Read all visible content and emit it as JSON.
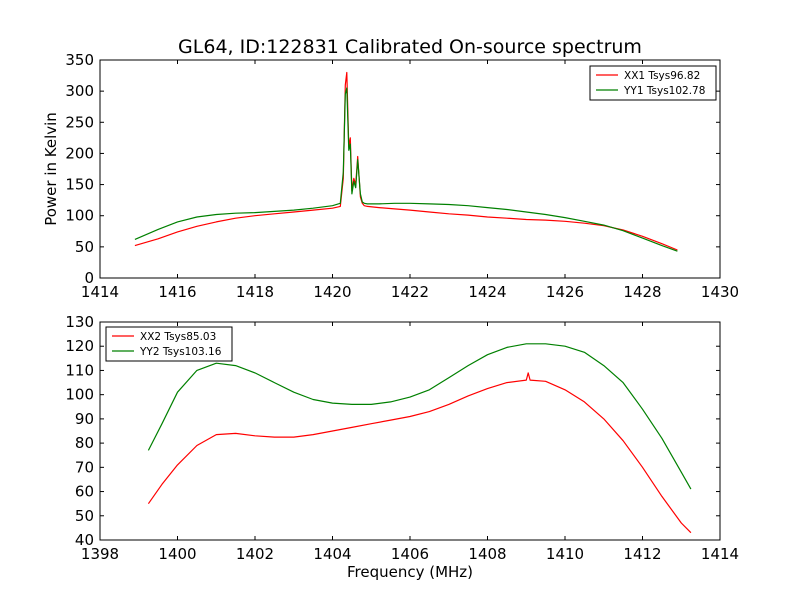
{
  "figure": {
    "title": "GL64, ID:122831 Calibrated On-source spectrum"
  },
  "chart_data": [
    {
      "type": "line",
      "title": "GL64, ID:122831 Calibrated On-source spectrum",
      "xlabel": "",
      "ylabel": "Power in Kelvin",
      "xlim": [
        1414,
        1430
      ],
      "ylim": [
        0,
        350
      ],
      "xticks": [
        1414,
        1416,
        1418,
        1420,
        1422,
        1424,
        1426,
        1428,
        1430
      ],
      "yticks": [
        0,
        50,
        100,
        150,
        200,
        250,
        300,
        350
      ],
      "grid": false,
      "legend_position": "top-right",
      "series": [
        {
          "name": "XX1 Tsys96.82",
          "color": "#ff0000",
          "x": [
            1414.9,
            1415.5,
            1416,
            1416.5,
            1417,
            1417.5,
            1418,
            1418.5,
            1419,
            1419.5,
            1420,
            1420.2,
            1420.28,
            1420.33,
            1420.37,
            1420.42,
            1420.46,
            1420.5,
            1420.55,
            1420.6,
            1420.65,
            1420.72,
            1420.77,
            1420.82,
            1420.9,
            1421.2,
            1421.6,
            1422,
            1422.5,
            1423,
            1423.5,
            1424,
            1424.5,
            1425,
            1425.5,
            1426,
            1426.5,
            1427,
            1427.5,
            1428,
            1428.5,
            1428.9
          ],
          "values": [
            52,
            63,
            74,
            83,
            90,
            96,
            100,
            103,
            106,
            109,
            112,
            115,
            160,
            310,
            330,
            210,
            225,
            140,
            160,
            150,
            195,
            130,
            120,
            116,
            115,
            113,
            111,
            109,
            106,
            103,
            101,
            98,
            96,
            94,
            93,
            91,
            88,
            84,
            77,
            67,
            55,
            45
          ]
        },
        {
          "name": "YY1 Tsys102.78",
          "color": "#008000",
          "x": [
            1414.9,
            1415.5,
            1416,
            1416.5,
            1417,
            1417.5,
            1418,
            1418.5,
            1419,
            1419.5,
            1420,
            1420.2,
            1420.28,
            1420.33,
            1420.37,
            1420.42,
            1420.46,
            1420.5,
            1420.55,
            1420.6,
            1420.65,
            1420.72,
            1420.77,
            1420.82,
            1420.9,
            1421.2,
            1421.6,
            1422,
            1422.5,
            1423,
            1423.5,
            1424,
            1424.5,
            1425,
            1425.5,
            1426,
            1426.5,
            1427,
            1427.5,
            1428,
            1428.5,
            1428.9
          ],
          "values": [
            62,
            78,
            90,
            98,
            102,
            104,
            105,
            107,
            109,
            112,
            116,
            120,
            170,
            295,
            305,
            205,
            215,
            135,
            155,
            145,
            190,
            135,
            122,
            120,
            119,
            119,
            120,
            120,
            119,
            118,
            116,
            113,
            110,
            106,
            102,
            97,
            91,
            85,
            76,
            64,
            52,
            43
          ]
        }
      ]
    },
    {
      "type": "line",
      "title": "",
      "xlabel": "Frequency (MHz)",
      "ylabel": "",
      "xlim": [
        1398,
        1414
      ],
      "ylim": [
        40,
        130
      ],
      "xticks": [
        1398,
        1400,
        1402,
        1404,
        1406,
        1408,
        1410,
        1412,
        1414
      ],
      "yticks": [
        40,
        50,
        60,
        70,
        80,
        90,
        100,
        110,
        120,
        130
      ],
      "grid": false,
      "legend_position": "top-left",
      "series": [
        {
          "name": "XX2 Tsys85.03",
          "color": "#ff0000",
          "x": [
            1399.25,
            1399.6,
            1400,
            1400.5,
            1401,
            1401.5,
            1402,
            1402.5,
            1403,
            1403.5,
            1404,
            1404.5,
            1405,
            1405.5,
            1406,
            1406.5,
            1407,
            1407.5,
            1408,
            1408.5,
            1409,
            1409.05,
            1409.1,
            1409.5,
            1410,
            1410.5,
            1411,
            1411.5,
            1412,
            1412.5,
            1413,
            1413.25
          ],
          "values": [
            55,
            63,
            71,
            79,
            83.5,
            84,
            83,
            82.5,
            82.5,
            83.5,
            85,
            86.5,
            88,
            89.5,
            91,
            93,
            96,
            99.5,
            102.5,
            105,
            106,
            109,
            106,
            105.5,
            102,
            97,
            90,
            81,
            70,
            58,
            47,
            43
          ]
        },
        {
          "name": "YY2 Tsys103.16",
          "color": "#008000",
          "x": [
            1399.25,
            1399.6,
            1400,
            1400.5,
            1401,
            1401.5,
            1402,
            1402.5,
            1403,
            1403.5,
            1404,
            1404.5,
            1405,
            1405.5,
            1406,
            1406.5,
            1407,
            1407.5,
            1408,
            1408.5,
            1409,
            1409.5,
            1410,
            1410.5,
            1411,
            1411.5,
            1412,
            1412.5,
            1413,
            1413.25
          ],
          "values": [
            77,
            88,
            101,
            110,
            113,
            112,
            109,
            105,
            101,
            98,
            96.5,
            96,
            96,
            97,
            99,
            102,
            107,
            112,
            116.5,
            119.5,
            121,
            121,
            120,
            117.5,
            112,
            105,
            94,
            82,
            68,
            61
          ]
        }
      ]
    }
  ]
}
